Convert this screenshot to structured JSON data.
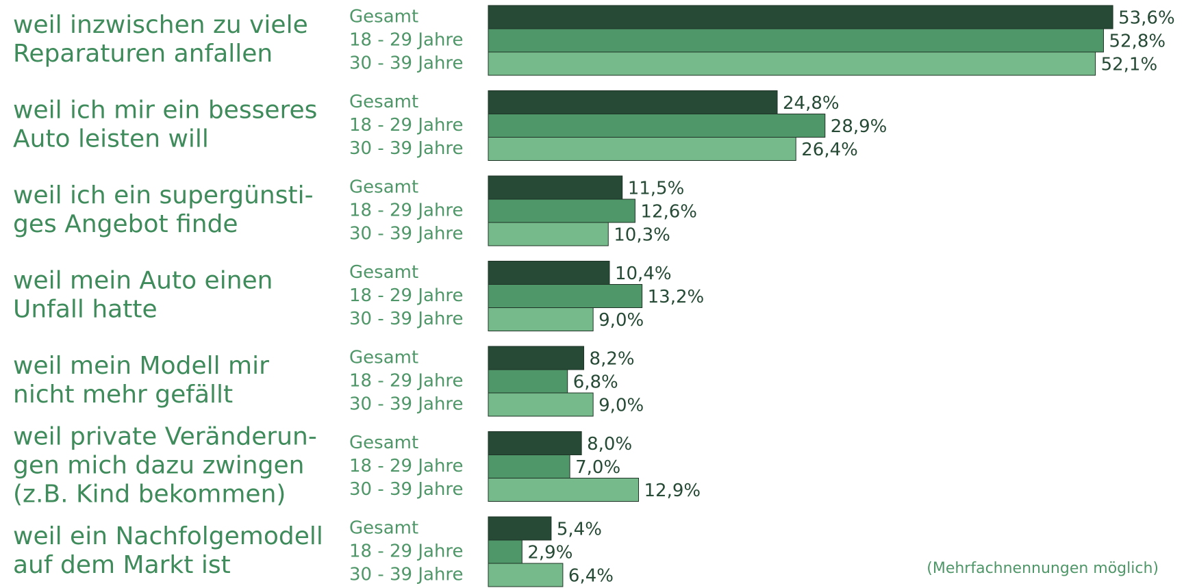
{
  "chart_data": {
    "type": "bar",
    "orientation": "horizontal",
    "categories": [
      [
        "weil inzwischen zu viele",
        "Reparaturen anfallen"
      ],
      [
        "weil ich mir ein besseres",
        "Auto leisten will"
      ],
      [
        "weil ich ein supergünsti-",
        "ges Angebot finde"
      ],
      [
        "weil mein Auto einen",
        "Unfall hatte"
      ],
      [
        "weil mein Modell mir",
        "nicht mehr gefällt"
      ],
      [
        "weil private Veränderun-",
        "gen mich dazu zwingen",
        "(z.B. Kind bekommen)"
      ],
      [
        "weil ein Nachfolgemodell",
        "auf dem Markt ist"
      ]
    ],
    "series": [
      {
        "name": "Gesamt",
        "color": "#264a35",
        "values": [
          53.6,
          24.8,
          11.5,
          10.4,
          8.2,
          8.0,
          5.4
        ],
        "value_labels": [
          "53,6%",
          "24,8%",
          "11,5%",
          "10,4%",
          "8,2%",
          "8,0%",
          "5,4%"
        ]
      },
      {
        "name": "18 - 29 Jahre",
        "color": "#4f9668",
        "values": [
          52.8,
          28.9,
          12.6,
          13.2,
          6.8,
          7.0,
          2.9
        ],
        "value_labels": [
          "52,8%",
          "28,9%",
          "12,6%",
          "13,2%",
          "6,8%",
          "7,0%",
          "2,9%"
        ]
      },
      {
        "name": "30 - 39 Jahre",
        "color": "#76b98a",
        "values": [
          52.1,
          26.4,
          10.3,
          9.0,
          9.0,
          12.9,
          6.4
        ],
        "value_labels": [
          "52,1%",
          "26,4%",
          "10,3%",
          "9,0%",
          "9,0%",
          "12,9%",
          "6,4%"
        ]
      }
    ],
    "xlim": [
      0,
      60
    ],
    "note": "(Mehrfachnennungen möglich)"
  }
}
